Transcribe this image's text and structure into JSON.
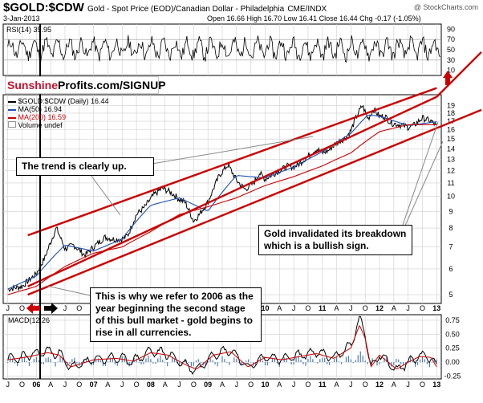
{
  "header": {
    "symbol": "$GOLD:$CDW",
    "subtitle": "Gold - Spot Price (EOD)/Canadian Dollar - Philadelphia",
    "exchange": "CME/INDX",
    "date": "3-Jan-2013",
    "ohlc": "Open 16.66  High 16.70  Low 16.41  Close 16.44  Chg -0.17 (-1.05%)",
    "watermark": "@ StockCharts.com"
  },
  "colors": {
    "red": "#cc0000",
    "blue": "#1f4fb0",
    "black": "#000000",
    "grid": "#cfcfcf"
  },
  "sunshine": {
    "brand": "Sunshine",
    "rest": "Profits.com/SIGNUP"
  },
  "arrows": {
    "up_arrow": "red-up-arrow-icon",
    "left_arrow": "red-left-arrow-icon",
    "right_arrow": "black-right-arrow-icon"
  },
  "callouts": {
    "trend": "The trend is clearly up.",
    "invalidated": "Gold invalidated its breakdown which is a bullish sign.",
    "year2006": "This is why we refer to 2006 as the year beginning the second stage of this bull market - gold begins to rise in all currencies."
  },
  "chart_data": [
    {
      "type": "line",
      "panel": "RSI",
      "label": "RSI(14) 35.95",
      "ylim": [
        0,
        100
      ],
      "y_ticks": [
        90,
        70,
        50,
        30,
        10
      ],
      "guides": [
        70,
        30
      ],
      "series": [
        {
          "name": "RSI(14)",
          "last": 35.95
        }
      ]
    },
    {
      "type": "line",
      "panel": "Price",
      "title": "$GOLD:$CDW (Daily) 16.44",
      "y_scale": "log",
      "ylim": [
        4.7,
        20.5
      ],
      "y_ticks": [
        5,
        6,
        7,
        8,
        9,
        10,
        11,
        12,
        13,
        14,
        15,
        16,
        17,
        18,
        19
      ],
      "x_tick_labels": [
        "J",
        "O",
        "06",
        "A",
        "J",
        "O",
        "07",
        "A",
        "J",
        "O",
        "08",
        "A",
        "J",
        "O",
        "09",
        "A",
        "J",
        "O",
        "10",
        "A",
        "J",
        "O",
        "11",
        "A",
        "J",
        "O",
        "12",
        "A",
        "J",
        "O",
        "13"
      ],
      "legend": [
        {
          "name": "$GOLD:$CDW (Daily)",
          "value": "16.44"
        },
        {
          "name": "MA(50)",
          "value": "16.94"
        },
        {
          "name": "MA(200)",
          "value": "16.59"
        },
        {
          "name": "Volume",
          "value": "undef"
        }
      ],
      "series": [
        {
          "name": "$GOLD:$CDW (Daily)",
          "x": [
            2005.5,
            2005.75,
            2006.0,
            2006.15,
            2006.35,
            2006.5,
            2006.65,
            2006.85,
            2007.0,
            2007.2,
            2007.35,
            2007.5,
            2007.6,
            2007.75,
            2007.9,
            2008.05,
            2008.2,
            2008.35,
            2008.5,
            2008.6,
            2008.75,
            2008.85,
            2009.0,
            2009.1,
            2009.2,
            2009.35,
            2009.5,
            2009.65,
            2009.8,
            2009.9,
            2010.0,
            2010.1,
            2010.25,
            2010.4,
            2010.5,
            2010.6,
            2010.75,
            2010.9,
            2011.0,
            2011.1,
            2011.25,
            2011.4,
            2011.5,
            2011.6,
            2011.7,
            2011.8,
            2011.9,
            2012.0,
            2012.1,
            2012.2,
            2012.35,
            2012.5,
            2012.6,
            2012.75,
            2012.9,
            2013.0
          ],
          "values": [
            5.2,
            5.3,
            5.8,
            6.5,
            8.0,
            6.9,
            7.1,
            6.6,
            7.0,
            7.5,
            7.4,
            7.4,
            7.6,
            8.8,
            9.3,
            10.1,
            10.6,
            10.3,
            9.8,
            9.6,
            8.4,
            8.8,
            9.6,
            10.6,
            11.6,
            12.5,
            11.2,
            10.5,
            11.0,
            11.8,
            11.3,
            11.6,
            12.0,
            12.4,
            12.3,
            12.6,
            13.3,
            14.0,
            13.6,
            13.8,
            14.6,
            15.1,
            15.9,
            17.6,
            19.0,
            17.3,
            18.5,
            17.6,
            17.6,
            16.8,
            16.6,
            16.3,
            16.5,
            17.4,
            17.0,
            16.44
          ]
        },
        {
          "name": "MA(50)",
          "x": [
            2005.5,
            2006.0,
            2006.5,
            2007.0,
            2007.5,
            2008.0,
            2008.5,
            2009.0,
            2009.5,
            2010.0,
            2010.5,
            2011.0,
            2011.5,
            2011.8,
            2012.0,
            2012.5,
            2013.0
          ],
          "values": [
            5.2,
            5.7,
            7.1,
            6.8,
            7.4,
            9.4,
            9.9,
            9.0,
            11.6,
            11.4,
            12.3,
            13.7,
            15.6,
            17.8,
            17.6,
            16.5,
            16.94
          ]
        },
        {
          "name": "MA(200)",
          "x": [
            2005.5,
            2006.0,
            2006.5,
            2007.0,
            2007.5,
            2008.0,
            2008.5,
            2009.0,
            2009.5,
            2010.0,
            2010.5,
            2011.0,
            2011.5,
            2012.0,
            2012.5,
            2013.0
          ],
          "values": [
            5.0,
            5.3,
            6.1,
            6.7,
            7.0,
            7.8,
            8.8,
            9.3,
            9.9,
            10.8,
            11.5,
            12.4,
            13.6,
            15.8,
            16.6,
            16.59
          ]
        }
      ],
      "trendlines": [
        {
          "name": "upper channel",
          "x": [
            2005.85,
            2013.0
          ],
          "values": [
            7.6,
            21.5
          ]
        },
        {
          "name": "lower channel",
          "x": [
            2005.85,
            2013.0
          ],
          "values": [
            5.0,
            16.2
          ]
        },
        {
          "name": "rsi trend",
          "x": [
            2005.85,
            2013.0
          ],
          "values": [
            5.3,
            20.2
          ]
        }
      ]
    },
    {
      "type": "line",
      "panel": "MACD",
      "label": "MACD(12,26",
      "ylim": [
        -0.3,
        0.85
      ],
      "y_ticks": [
        0.75,
        0.5,
        0.25,
        0.0,
        -0.25
      ],
      "x_tick_labels": [
        "J",
        "O",
        "06",
        "A",
        "J",
        "O",
        "07",
        "A",
        "J",
        "O",
        "08",
        "A",
        "J",
        "O",
        "09",
        "A",
        "J",
        "O",
        "10",
        "A",
        "J",
        "O",
        "11",
        "A",
        "J",
        "O",
        "12",
        "A",
        "J",
        "O",
        "13"
      ],
      "series": [
        {
          "name": "MACD",
          "x": [
            2005.5,
            2005.8,
            2006.2,
            2006.4,
            2006.6,
            2007.0,
            2007.4,
            2007.7,
            2008.0,
            2008.3,
            2008.6,
            2008.8,
            2009.1,
            2009.4,
            2009.7,
            2010.0,
            2010.3,
            2010.6,
            2010.9,
            2011.2,
            2011.5,
            2011.65,
            2011.75,
            2011.85,
            2012.0,
            2012.3,
            2012.5,
            2012.7,
            2012.9,
            2013.0
          ],
          "values": [
            0.05,
            0.1,
            0.2,
            0.15,
            -0.1,
            0.05,
            0.08,
            0.02,
            0.2,
            0.15,
            -0.05,
            -0.15,
            0.15,
            0.22,
            -0.1,
            0.1,
            0.05,
            0.12,
            0.18,
            0.08,
            0.3,
            0.78,
            0.5,
            -0.1,
            0.15,
            -0.15,
            0.0,
            0.12,
            0.1,
            -0.1
          ]
        }
      ]
    }
  ]
}
